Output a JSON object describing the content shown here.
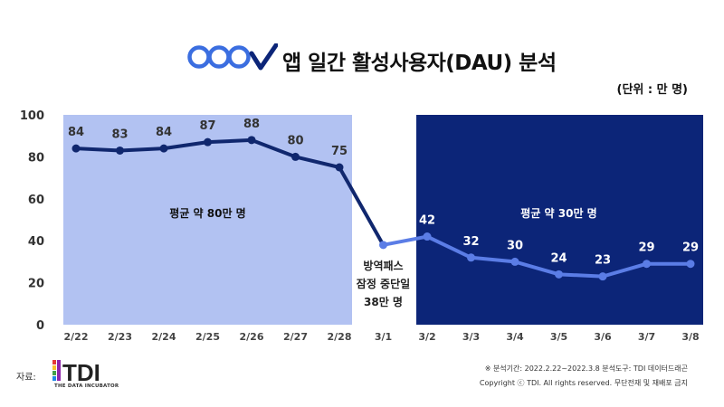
{
  "header": {
    "title": "앱 일간 활성사용자(DAU) 분석",
    "unit": "(단위 : 만 명)"
  },
  "chart_data": {
    "type": "line",
    "title": "앱 일간 활성사용자(DAU) 분석",
    "categories": [
      "2/22",
      "2/23",
      "2/24",
      "2/25",
      "2/26",
      "2/27",
      "2/28",
      "3/1",
      "3/2",
      "3/3",
      "3/4",
      "3/5",
      "3/6",
      "3/7",
      "3/8"
    ],
    "values": [
      84,
      83,
      84,
      87,
      88,
      80,
      75,
      38,
      42,
      32,
      30,
      24,
      23,
      29,
      29
    ],
    "data_labels": [
      "84",
      "83",
      "84",
      "87",
      "88",
      "80",
      "75",
      "",
      "42",
      "32",
      "30",
      "24",
      "23",
      "29",
      "29"
    ],
    "y_ticks": [
      0,
      20,
      40,
      60,
      80,
      100
    ],
    "ylim": [
      0,
      100
    ],
    "annotations": {
      "left_region": "평균 약 80만 명",
      "right_region": "평균 약 30만 명",
      "mid_note": [
        "방역패스",
        "잠정 중단일",
        "38만 명"
      ]
    },
    "colors": {
      "left_bg": "#b2c2f2",
      "right_bg": "#0c2578",
      "line_before": "#10276e",
      "line_after": "#5b7de6",
      "right_text": "#ffffff"
    }
  },
  "footer": {
    "source_label": "자료:",
    "logo_text": "TDI",
    "logo_sub": "THE DATA INCUBATOR",
    "note": "※ 분석기간: 2022.2.22~2022.3.8  분석도구: TDI 데이터드래곤",
    "copyright": "Copyright ⓒ TDI. All rights reserved. 무단전재 및 재배포 금지"
  }
}
